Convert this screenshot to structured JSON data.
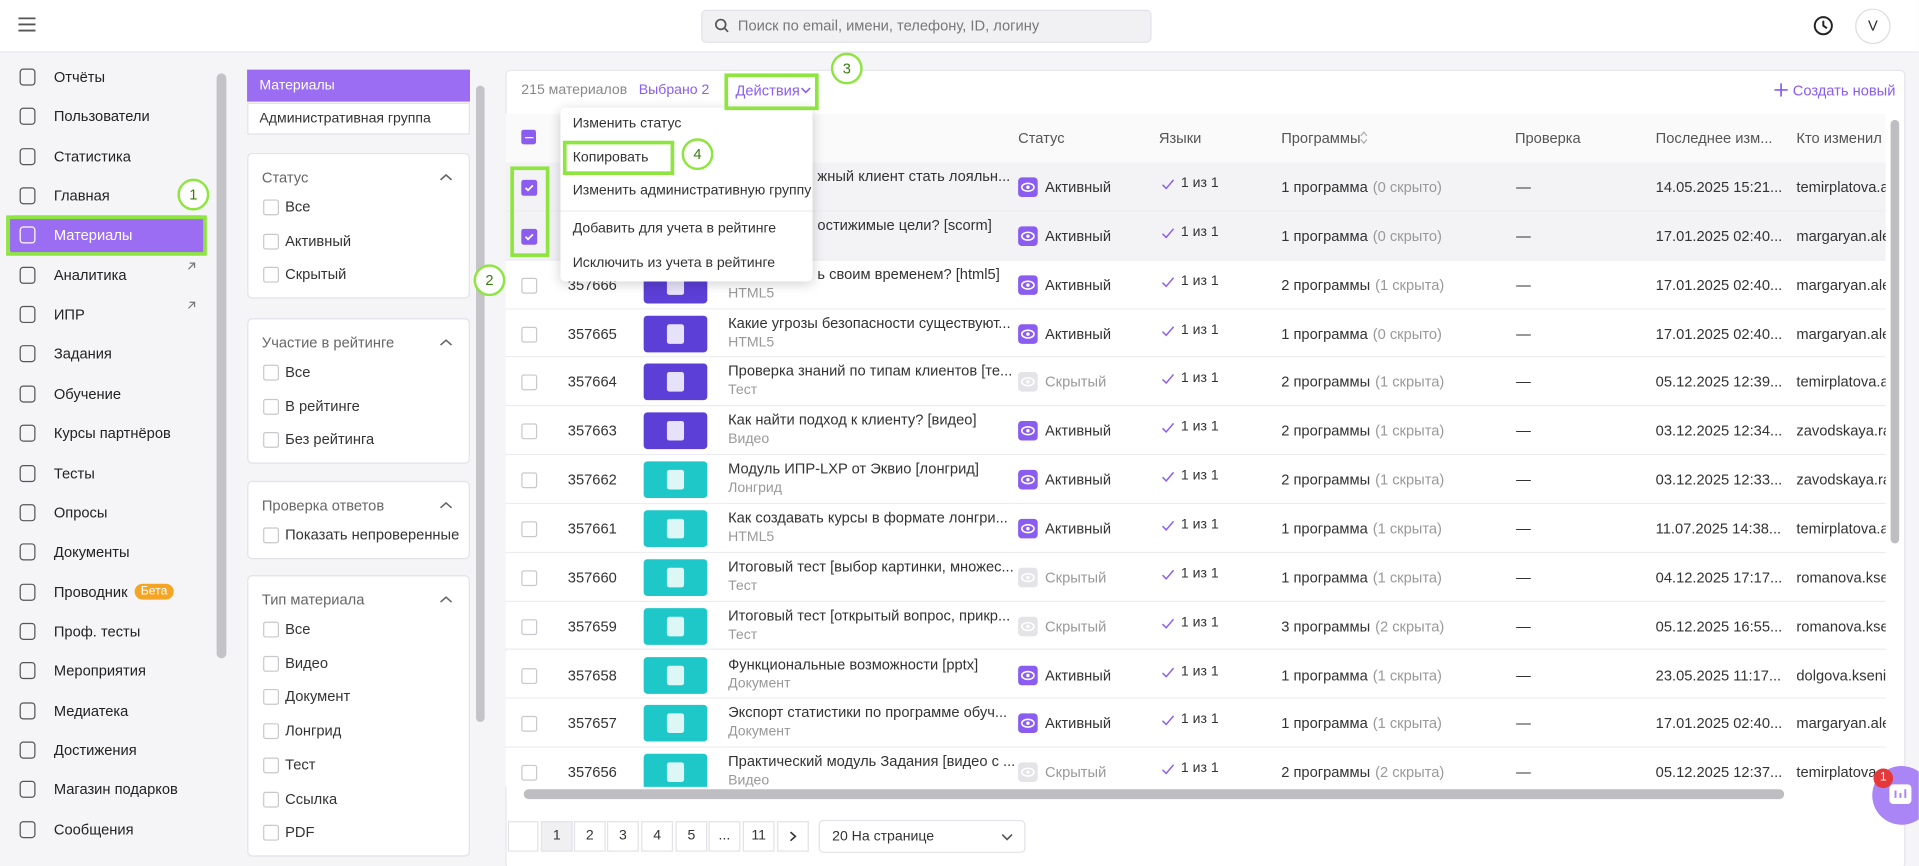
{
  "header": {
    "search_placeholder": "Поиск по email, имени, телефону, ID, логину",
    "avatar": "V"
  },
  "sidebar": {
    "items": [
      {
        "label": "Отчёты"
      },
      {
        "label": "Пользователи"
      },
      {
        "label": "Статистика"
      },
      {
        "label": "Главная"
      },
      {
        "label": "Материалы",
        "active": true
      },
      {
        "label": "Аналитика",
        "external": true
      },
      {
        "label": "ИПР",
        "external": true
      },
      {
        "label": "Задания"
      },
      {
        "label": "Обучение"
      },
      {
        "label": "Курсы партнёров"
      },
      {
        "label": "Тесты"
      },
      {
        "label": "Опросы"
      },
      {
        "label": "Документы"
      },
      {
        "label": "Проводник",
        "badge": "Бета"
      },
      {
        "label": "Проф. тесты"
      },
      {
        "label": "Мероприятия"
      },
      {
        "label": "Медиатека"
      },
      {
        "label": "Достижения"
      },
      {
        "label": "Магазин подарков"
      },
      {
        "label": "Сообщения"
      }
    ]
  },
  "filters": {
    "tabs": [
      "Материалы",
      "Административная группа"
    ],
    "groups": [
      {
        "title": "Статус",
        "options": [
          "Все",
          "Активный",
          "Скрытый"
        ]
      },
      {
        "title": "Участие в рейтинге",
        "options": [
          "Все",
          "В рейтинге",
          "Без рейтинга"
        ]
      },
      {
        "title": "Проверка ответов",
        "options": [
          "Показать непроверенные"
        ]
      },
      {
        "title": "Тип материала",
        "options": [
          "Все",
          "Видео",
          "Документ",
          "Лонгрид",
          "Тест",
          "Ссылка",
          "PDF"
        ]
      }
    ]
  },
  "toolbar": {
    "count": "215 материалов",
    "selected": "Выбрано 2",
    "actions": "Действия",
    "create": "Создать новый"
  },
  "columns": [
    "Статус",
    "Языки",
    "Программы",
    "Проверка",
    "Последнее изм...",
    "Кто изменил"
  ],
  "menu": [
    "Изменить статус",
    "Копировать",
    "Изменить административную группу",
    "Добавить для учета в рейтинге",
    "Исключить из учета в рейтинге"
  ],
  "rows": [
    {
      "title": "жный клиент стать лояльн...",
      "status": "Активный",
      "active": true,
      "languages": "1 из 1",
      "programs": "1 программа",
      "hidden": "(0 скрыто)",
      "check": "—",
      "modified": "14.05.2025 15:21...",
      "by": "temirplatova.alt",
      "checked": true,
      "thumb": "#5b3fd6"
    },
    {
      "title": "остижимые цели? [scorm]",
      "status": "Активный",
      "active": true,
      "languages": "1 из 1",
      "programs": "1 программа",
      "hidden": "(0 скрыто)",
      "check": "—",
      "modified": "17.01.2025 02:40...",
      "by": "margaryan.alex",
      "checked": true,
      "thumb": "#5b3fd6"
    },
    {
      "id": "357666",
      "title": "ь своим временем? [html5]",
      "type": "HTML5",
      "status": "Активный",
      "active": true,
      "languages": "1 из 1",
      "programs": "2 программы",
      "hidden": "(1 скрыта)",
      "check": "—",
      "modified": "17.01.2025 02:40...",
      "by": "margaryan.alex",
      "checked": false,
      "thumb": "#5b3fd6"
    },
    {
      "id": "357665",
      "title": "Какие угрозы безопасности существуют...",
      "type": "HTML5",
      "status": "Активный",
      "active": true,
      "languages": "1 из 1",
      "programs": "1 программа",
      "hidden": "(0 скрыто)",
      "check": "—",
      "modified": "17.01.2025 02:40...",
      "by": "margaryan.alex",
      "checked": false,
      "thumb": "#5b3fd6"
    },
    {
      "id": "357664",
      "title": "Проверка знаний по типам клиентов [те...",
      "type": "Тест",
      "status": "Скрытый",
      "active": false,
      "languages": "1 из 1",
      "programs": "2 программы",
      "hidden": "(1 скрыта)",
      "check": "—",
      "modified": "05.12.2025 12:39...",
      "by": "temirplatova.alt",
      "checked": false,
      "thumb": "#5b3fd6"
    },
    {
      "id": "357663",
      "title": "Как найти подход к клиенту? [видео]",
      "type": "Видео",
      "status": "Активный",
      "active": true,
      "languages": "1 из 1",
      "programs": "2 программы",
      "hidden": "(1 скрыта)",
      "check": "—",
      "modified": "03.12.2025 12:34...",
      "by": "zavodskaya.rais",
      "checked": false,
      "thumb": "#5b3fd6"
    },
    {
      "id": "357662",
      "title": "Модуль ИПР-LXP от Эквио [лонгрид]",
      "type": "Лонгрид",
      "status": "Активный",
      "active": true,
      "languages": "1 из 1",
      "programs": "2 программы",
      "hidden": "(1 скрыта)",
      "check": "—",
      "modified": "03.12.2025 12:33...",
      "by": "zavodskaya.rais",
      "checked": false,
      "thumb": "#1fc8c8"
    },
    {
      "id": "357661",
      "title": "Как создавать курсы в формате лонгри...",
      "type": "HTML5",
      "status": "Активный",
      "active": true,
      "languages": "1 из 1",
      "programs": "1 программа",
      "hidden": "(1 скрыта)",
      "check": "—",
      "modified": "11.07.2025 14:38...",
      "by": "temirplatova.alt",
      "checked": false,
      "thumb": "#1fc8c8"
    },
    {
      "id": "357660",
      "title": "Итоговый тест [выбор картинки, множес...",
      "type": "Тест",
      "status": "Скрытый",
      "active": false,
      "languages": "1 из 1",
      "programs": "1 программа",
      "hidden": "(1 скрыта)",
      "check": "—",
      "modified": "04.12.2025 17:17...",
      "by": "romanova.ksen",
      "checked": false,
      "thumb": "#1fc8c8"
    },
    {
      "id": "357659",
      "title": "Итоговый тест [открытый вопрос, прикр...",
      "type": "Тест",
      "status": "Скрытый",
      "active": false,
      "languages": "1 из 1",
      "programs": "3 программы",
      "hidden": "(2 скрыта)",
      "check": "—",
      "modified": "05.12.2025 16:55...",
      "by": "romanova.ksen",
      "checked": false,
      "thumb": "#1fc8c8"
    },
    {
      "id": "357658",
      "title": "Функциональные возможности [pptx]",
      "type": "Документ",
      "status": "Активный",
      "active": true,
      "languages": "1 из 1",
      "programs": "1 программа",
      "hidden": "(1 скрыта)",
      "check": "—",
      "modified": "23.05.2025 11:17...",
      "by": "dolgova.kseniya",
      "checked": false,
      "thumb": "#1fc8c8"
    },
    {
      "id": "357657",
      "title": "Экспорт статистики по программе обуч...",
      "type": "Документ",
      "status": "Активный",
      "active": true,
      "languages": "1 из 1",
      "programs": "1 программа",
      "hidden": "(1 скрыта)",
      "check": "—",
      "modified": "17.01.2025 02:40...",
      "by": "margaryan.alex",
      "checked": false,
      "thumb": "#1fc8c8"
    },
    {
      "id": "357656",
      "title": "Практический модуль Задания [видео с ...",
      "type": "Видео",
      "status": "Скрытый",
      "active": false,
      "languages": "1 из 1",
      "programs": "2 программы",
      "hidden": "(2 скрыта)",
      "check": "—",
      "modified": "05.12.2025 12:37...",
      "by": "temirplatova.alt",
      "checked": false,
      "thumb": "#1fc8c8"
    }
  ],
  "pagination": {
    "pages": [
      "1",
      "2",
      "3",
      "4",
      "5",
      "...",
      "11"
    ],
    "per_page": "20 На странице"
  },
  "chat_badge": "1",
  "annotations": [
    "1",
    "2",
    "3",
    "4"
  ]
}
